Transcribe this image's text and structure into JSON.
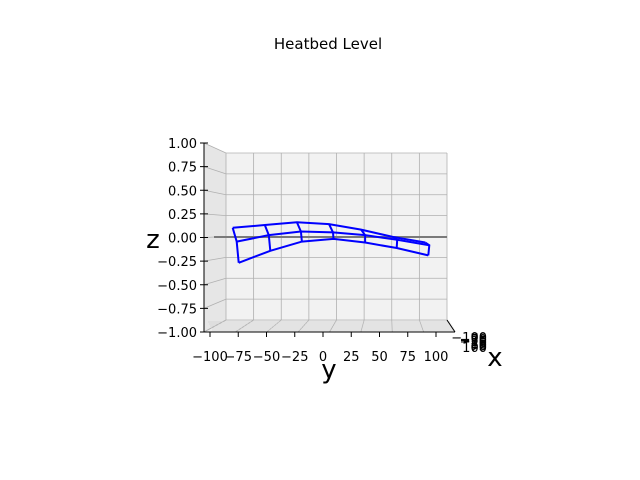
{
  "chart_data": {
    "type": "wireframe3d",
    "title": "Heatbed Level",
    "xlabel": "x",
    "ylabel": "y",
    "zlabel": "z",
    "zlim": [
      -1.0,
      1.0
    ],
    "ylim": [
      -100,
      100
    ],
    "xlim": [
      -100,
      100
    ],
    "y_ticks": [
      "−100",
      "−75",
      "−50",
      "−25",
      "0",
      "25",
      "50",
      "75",
      "100"
    ],
    "z_ticks": [
      "1.00",
      "0.75",
      "0.50",
      "0.25",
      "0.00",
      "−0.25",
      "−0.50",
      "−0.75",
      "−1.00"
    ],
    "x_ticks_overlapped": [
      "−100",
      "−75",
      "−50",
      "−25",
      "0",
      "25",
      "50",
      "75",
      "100"
    ],
    "grid": true,
    "view": "elevation ~0, looking along x axis",
    "surface_color": "#0000ff",
    "grid_y": [
      -90,
      -60,
      -30,
      0,
      30,
      60,
      90
    ],
    "grid_x_rows": [
      {
        "x": -90,
        "z": [
          0.1,
          0.13,
          0.16,
          0.14,
          0.08,
          0.0,
          -0.06
        ]
      },
      {
        "x": 0,
        "z": [
          -0.05,
          0.02,
          0.06,
          0.05,
          0.02,
          -0.03,
          -0.09
        ]
      },
      {
        "x": 90,
        "z": [
          -0.28,
          -0.15,
          -0.05,
          -0.02,
          -0.06,
          -0.12,
          -0.2
        ]
      }
    ]
  }
}
